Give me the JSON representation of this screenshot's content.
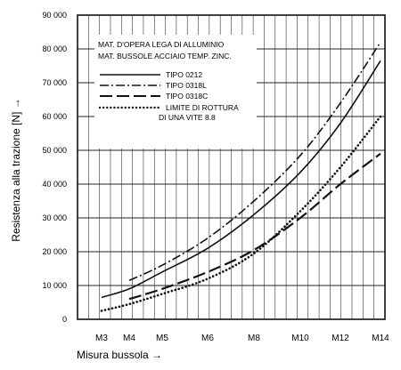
{
  "chart_data": {
    "type": "line",
    "xlabel": "Misura bussola →",
    "ylabel": "Resistenza alla trazione [N] →",
    "categories": [
      "M3",
      "M4",
      "M5",
      "M6",
      "M8",
      "M10",
      "M12",
      "M14"
    ],
    "ylim": [
      0,
      90000
    ],
    "yticks": [
      "0",
      "10 000",
      "20 000",
      "30 000",
      "40 000",
      "50 000",
      "60 000",
      "70 000",
      "80 000",
      "90 000"
    ],
    "grid": true,
    "legend": {
      "header": [
        "MAT. D'OPERA LEGA DI ALLUMINIO",
        "MAT. BUSSOLE ACCIAIO TEMP. ZINC."
      ],
      "placement": "top-left"
    },
    "series": [
      {
        "name": "TIPO 0212",
        "style": "solid",
        "x": [
          "M3",
          "M4",
          "M5",
          "M6",
          "M8",
          "M10",
          "M12",
          "M14"
        ],
        "values": [
          6500,
          9000,
          14000,
          21000,
          31000,
          43500,
          58000,
          76500
        ]
      },
      {
        "name": "TIPO 0318L",
        "style": "dash-dot",
        "x": [
          "M4",
          "M5",
          "M6",
          "M8",
          "M10",
          "M12",
          "M14"
        ],
        "values": [
          11500,
          16000,
          24000,
          35000,
          48500,
          64000,
          82000
        ]
      },
      {
        "name": "TIPO 0318C",
        "style": "long-dash",
        "x": [
          "M4",
          "M5",
          "M6",
          "M8",
          "M10",
          "M12",
          "M14"
        ],
        "values": [
          6000,
          9000,
          14000,
          20500,
          30000,
          40000,
          49000
        ]
      },
      {
        "name_lines": [
          "LIMITE DI ROTTURA",
          "DI UNA VITE 8.8"
        ],
        "style": "dotted",
        "x": [
          "M3",
          "M4",
          "M5",
          "M6",
          "M8",
          "M10",
          "M12",
          "M14"
        ],
        "values": [
          2500,
          4500,
          7500,
          12000,
          19500,
          32000,
          45000,
          60000
        ]
      }
    ]
  }
}
